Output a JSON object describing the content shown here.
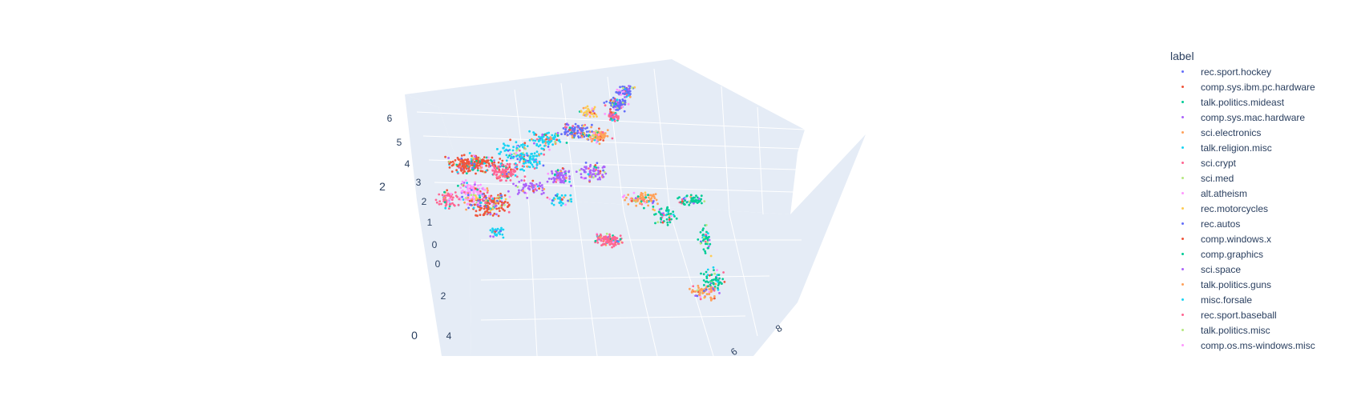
{
  "chart_data": {
    "type": "scatter",
    "title": "",
    "legend_title": "label",
    "legend_position": "right",
    "axes": {
      "x": {
        "tick_labels": [
          "0",
          "2",
          "4"
        ]
      },
      "y": {
        "tick_labels": [
          "6",
          "8"
        ]
      },
      "z": {
        "tick_labels": [
          "0",
          "1",
          "2",
          "3",
          "4",
          "5",
          "6"
        ]
      },
      "axis_titles": [
        "",
        "",
        ""
      ],
      "grid": true,
      "background": "#E5ECF6"
    },
    "stray_labels": [
      "2",
      "0"
    ],
    "series": [
      {
        "name": "rec.sport.hockey",
        "color": "#636EFA"
      },
      {
        "name": "comp.sys.ibm.pc.hardware",
        "color": "#EF553B"
      },
      {
        "name": "talk.politics.mideast",
        "color": "#00CC96"
      },
      {
        "name": "comp.sys.mac.hardware",
        "color": "#AB63FA"
      },
      {
        "name": "sci.electronics",
        "color": "#FFA15A"
      },
      {
        "name": "talk.religion.misc",
        "color": "#19D3F3"
      },
      {
        "name": "sci.crypt",
        "color": "#FF6692"
      },
      {
        "name": "sci.med",
        "color": "#B6E880"
      },
      {
        "name": "alt.atheism",
        "color": "#FF97FF"
      },
      {
        "name": "rec.motorcycles",
        "color": "#FECB52"
      },
      {
        "name": "rec.autos",
        "color": "#636EFA"
      },
      {
        "name": "comp.windows.x",
        "color": "#EF553B"
      },
      {
        "name": "comp.graphics",
        "color": "#00CC96"
      },
      {
        "name": "sci.space",
        "color": "#AB63FA"
      },
      {
        "name": "talk.politics.guns",
        "color": "#FFA15A"
      },
      {
        "name": "misc.forsale",
        "color": "#19D3F3"
      },
      {
        "name": "rec.sport.baseball",
        "color": "#FF6692"
      },
      {
        "name": "talk.politics.misc",
        "color": "#B6E880"
      },
      {
        "name": "comp.os.ms-windows.misc",
        "color": "#FF97FF"
      }
    ]
  }
}
